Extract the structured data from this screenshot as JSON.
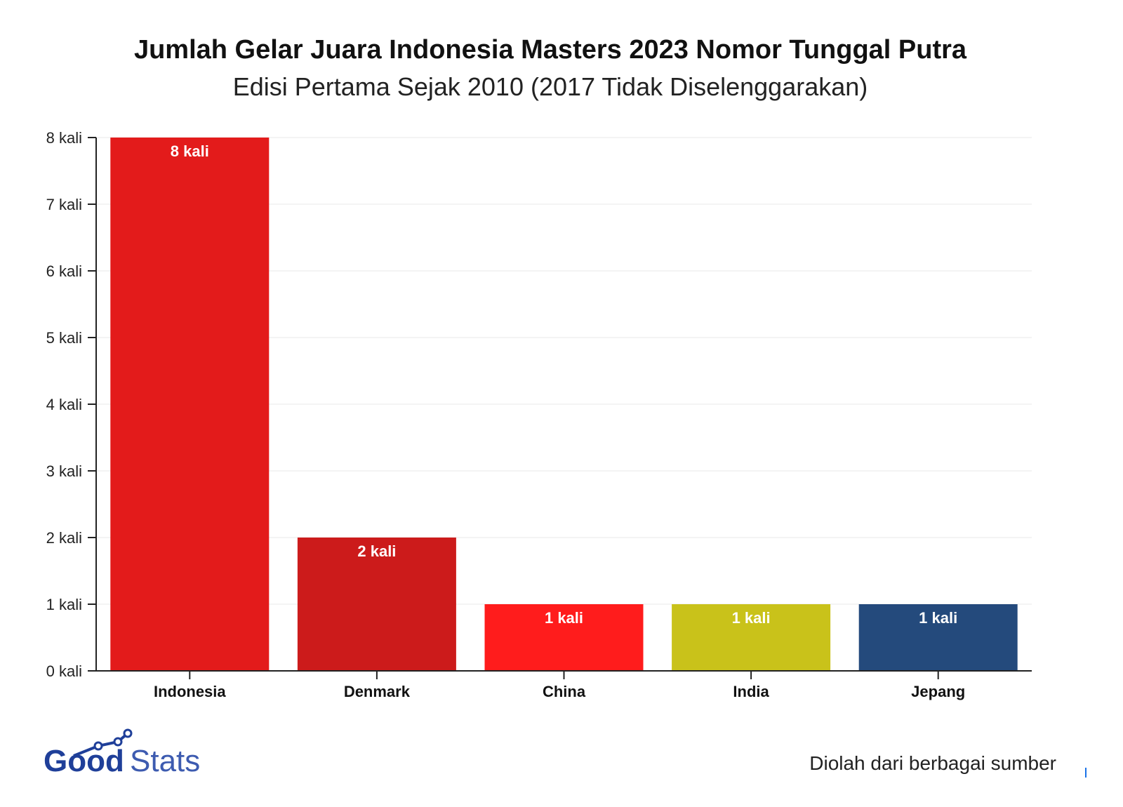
{
  "chart_data": {
    "type": "bar",
    "title": "Jumlah Gelar Juara Indonesia Masters 2023 Nomor Tunggal Putra",
    "subtitle": "Edisi Pertama Sejak 2010 (2017 Tidak Diselenggarakan)",
    "categories": [
      "Indonesia",
      "Denmark",
      "China",
      "India",
      "Jepang"
    ],
    "values": [
      8,
      2,
      1,
      1,
      1
    ],
    "data_labels": [
      "8 kali",
      "2 kali",
      "1 kali",
      "1 kali",
      "1 kali"
    ],
    "colors": [
      "#e31b1b",
      "#cc1b1b",
      "#ff1c1c",
      "#c9c21a",
      "#244a7c"
    ],
    "ylim": [
      0,
      8
    ],
    "yticks": [
      "0 kali",
      "1 kali",
      "2 kali",
      "3 kali",
      "4 kali",
      "5 kali",
      "6 kali",
      "7 kali",
      "8 kali"
    ],
    "grid": true
  },
  "source": "Diolah dari berbagai sumber",
  "logo": {
    "text": "GoodStats",
    "color": "#1f3f99"
  }
}
